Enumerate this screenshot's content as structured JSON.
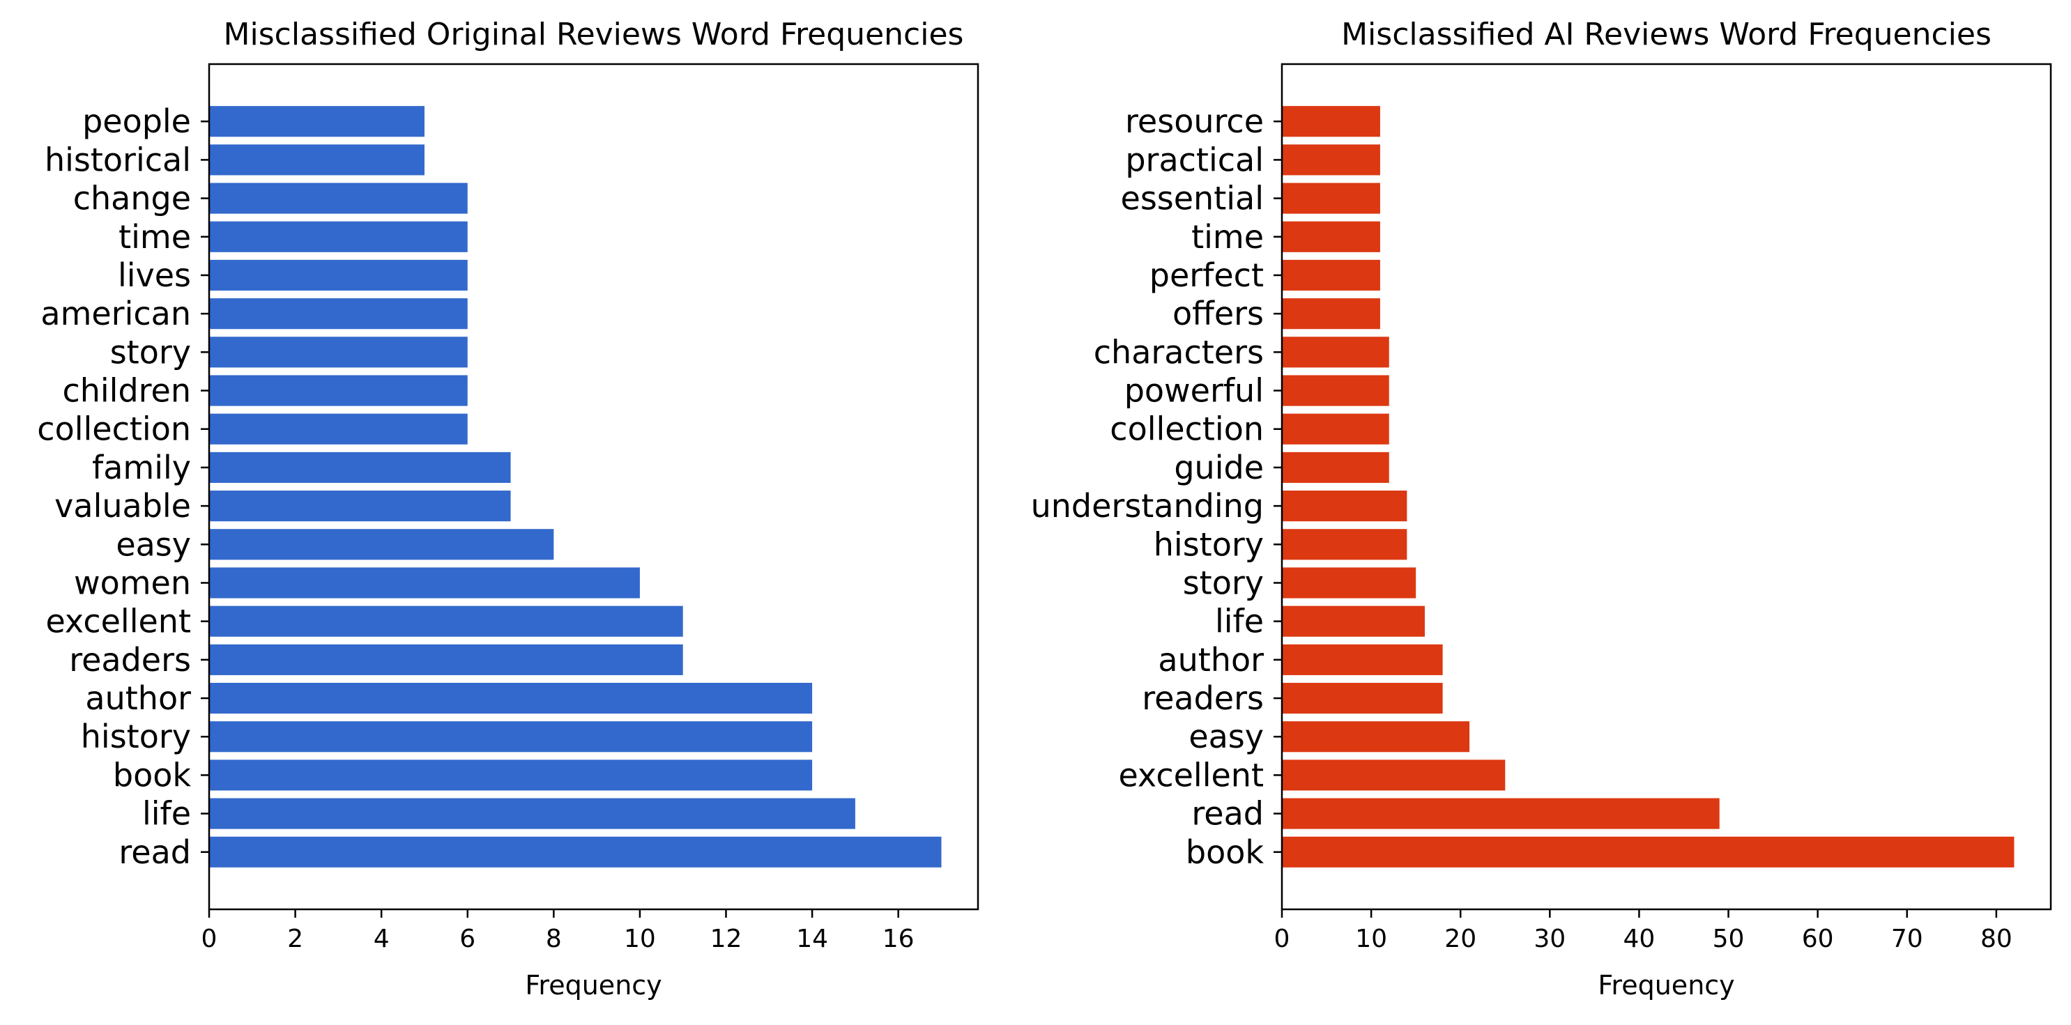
{
  "chart_data": [
    {
      "type": "bar",
      "orientation": "horizontal",
      "title": "Misclassified Original Reviews Word Frequencies",
      "xlabel": "Frequency",
      "ylabel": "",
      "categories": [
        "read",
        "life",
        "book",
        "history",
        "author",
        "readers",
        "excellent",
        "women",
        "easy",
        "valuable",
        "family",
        "collection",
        "children",
        "story",
        "american",
        "lives",
        "time",
        "change",
        "historical",
        "people"
      ],
      "values": [
        17,
        15,
        14,
        14,
        14,
        11,
        11,
        10,
        8,
        7,
        7,
        6,
        6,
        6,
        6,
        6,
        6,
        6,
        5,
        5
      ],
      "xlim": [
        0,
        17.85
      ],
      "xticks": [
        0,
        2,
        4,
        6,
        8,
        10,
        12,
        14,
        16
      ],
      "color": "#3369cc",
      "grid": false
    },
    {
      "type": "bar",
      "orientation": "horizontal",
      "title": "Misclassified AI Reviews Word Frequencies",
      "xlabel": "Frequency",
      "ylabel": "",
      "categories": [
        "book",
        "read",
        "excellent",
        "easy",
        "readers",
        "author",
        "life",
        "story",
        "history",
        "understanding",
        "guide",
        "collection",
        "powerful",
        "characters",
        "offers",
        "perfect",
        "time",
        "essential",
        "practical",
        "resource"
      ],
      "values": [
        82,
        49,
        25,
        21,
        18,
        18,
        16,
        15,
        14,
        14,
        12,
        12,
        12,
        12,
        11,
        11,
        11,
        11,
        11,
        11
      ],
      "xlim": [
        0,
        86.1
      ],
      "xticks": [
        0,
        10,
        20,
        30,
        40,
        50,
        60,
        70,
        80
      ],
      "color": "#dc3912",
      "grid": false
    }
  ]
}
